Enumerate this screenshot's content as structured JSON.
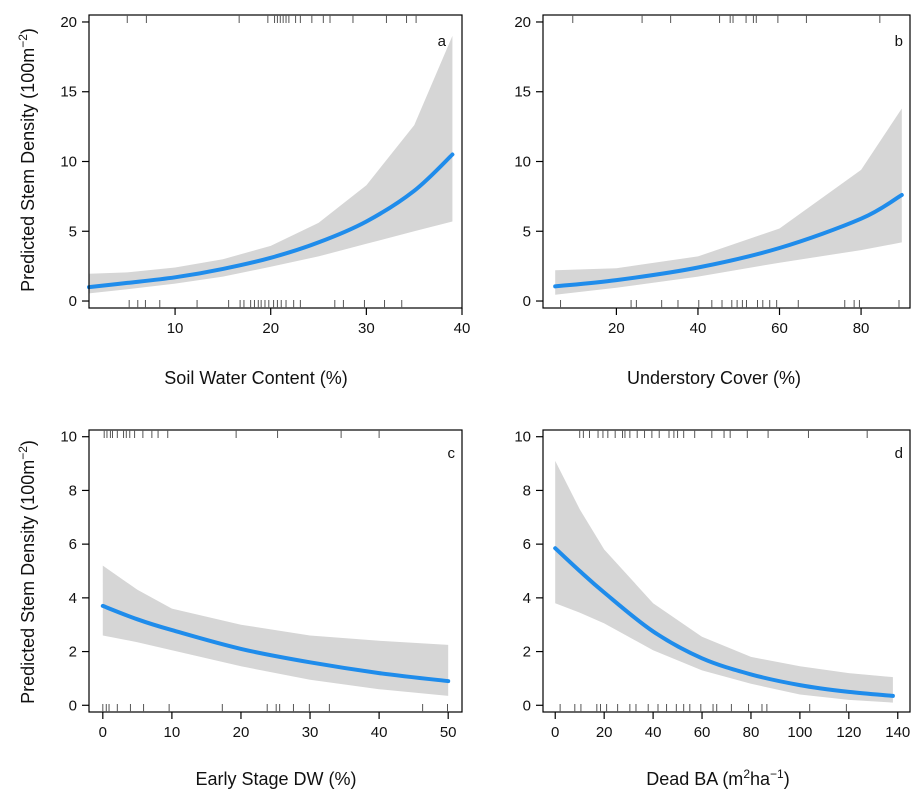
{
  "chart_data": [
    {
      "type": "line",
      "panel": "a",
      "xlabel": "Soil Water Content (%)",
      "ylabel": "Predicted Stem Density (100m",
      "ylabel_sup": "−2",
      "ylabel_tail": ")",
      "xlim": [
        1,
        40
      ],
      "ylim": [
        -0.5,
        20.5
      ],
      "x_ticks": [
        10,
        20,
        30,
        40
      ],
      "y_ticks": [
        0,
        5,
        10,
        15,
        20
      ],
      "x": [
        1,
        5,
        10,
        15,
        20,
        25,
        30,
        35,
        39
      ],
      "fit": [
        1.0,
        1.3,
        1.7,
        2.3,
        3.1,
        4.2,
        5.7,
        7.9,
        10.5
      ],
      "ci_lower": [
        0.55,
        0.85,
        1.25,
        1.75,
        2.45,
        3.2,
        4.1,
        5.0,
        5.7
      ],
      "ci_upper": [
        1.95,
        2.05,
        2.4,
        3.0,
        3.95,
        5.6,
        8.3,
        12.6,
        19.0
      ],
      "rug_bottom": [
        5.2,
        6.1,
        6.9,
        8.4,
        12.3,
        15.6,
        16.8,
        17.2,
        17.9,
        18.3,
        18.7,
        19.0,
        19.4,
        19.8,
        20.3,
        20.7,
        21.1,
        21.6,
        22.4,
        23.1,
        26.7,
        27.6,
        29.8,
        31.9,
        33.7
      ],
      "rug_top": [
        5.0,
        7.0,
        16.7,
        19.7,
        20.4,
        20.7,
        21.0,
        21.3,
        21.6,
        21.9,
        22.6,
        23.1,
        24.3,
        25.5,
        26.2,
        28.6,
        32.1,
        34.2,
        35.2
      ]
    },
    {
      "type": "line",
      "panel": "b",
      "xlabel": "Understory Cover (%)",
      "xlim": [
        2,
        92
      ],
      "ylim": [
        -0.5,
        20.5
      ],
      "x_ticks": [
        20,
        40,
        60,
        80
      ],
      "y_ticks": [
        0,
        5,
        10,
        15,
        20
      ],
      "x": [
        5,
        20,
        40,
        60,
        80,
        90
      ],
      "fit": [
        1.05,
        1.5,
        2.4,
        3.8,
        5.9,
        7.6
      ],
      "ci_lower": [
        0.45,
        0.95,
        1.75,
        2.75,
        3.65,
        4.2
      ],
      "ci_upper": [
        2.2,
        2.35,
        3.2,
        5.2,
        9.4,
        13.8
      ],
      "rug_bottom": [
        6.3,
        23.6,
        24.9,
        31.1,
        35.1,
        40.2,
        43.4,
        45.9,
        48.3,
        49.6,
        50.9,
        51.9,
        54.6,
        55.9,
        57.6,
        59.3,
        64.6,
        76.0,
        78.3,
        79.6,
        89.3
      ],
      "rug_top": [
        9.3,
        26.3,
        33.3,
        45.3,
        47.9,
        48.6,
        51.8,
        53.6,
        54.3,
        59.6,
        66.6,
        84.6
      ]
    },
    {
      "type": "line",
      "panel": "c",
      "xlabel": "Early Stage DW (%)",
      "ylabel": "Predicted Stem Density (100m",
      "ylabel_sup": "−2",
      "ylabel_tail": ")",
      "xlim": [
        -2,
        52
      ],
      "ylim": [
        -0.25,
        10.25
      ],
      "x_ticks": [
        0,
        10,
        20,
        30,
        40,
        50
      ],
      "y_ticks": [
        0,
        2,
        4,
        6,
        8,
        10
      ],
      "x": [
        0,
        5,
        10,
        20,
        30,
        40,
        50
      ],
      "fit": [
        3.7,
        3.2,
        2.8,
        2.1,
        1.6,
        1.2,
        0.9
      ],
      "ci_lower": [
        2.6,
        2.35,
        2.05,
        1.45,
        0.95,
        0.6,
        0.35
      ],
      "ci_upper": [
        5.2,
        4.3,
        3.6,
        3.0,
        2.6,
        2.4,
        2.25
      ],
      "rug_bottom": [
        0.0,
        0.5,
        0.9,
        2.1,
        4.0,
        5.9,
        9.6,
        17.3,
        23.8,
        25.1,
        25.6,
        27.6,
        29.9,
        32.8,
        46.3,
        49.9
      ],
      "rug_top": [
        0.2,
        0.6,
        1.1,
        1.4,
        2.1,
        3.0,
        3.4,
        3.9,
        4.6,
        5.8,
        7.1,
        8.0,
        9.4,
        19.3,
        25.3,
        34.5,
        40.0
      ]
    },
    {
      "type": "line",
      "panel": "d",
      "xlabel": "Dead BA (m",
      "xlabel_sup1": "2",
      "xlabel_mid": "ha",
      "xlabel_sup2": "−1",
      "xlabel_tail": ")",
      "xlim": [
        -5,
        145
      ],
      "ylim": [
        -0.25,
        10.25
      ],
      "x_ticks": [
        0,
        20,
        40,
        60,
        80,
        100,
        120,
        140
      ],
      "y_ticks": [
        0,
        2,
        4,
        6,
        8,
        10
      ],
      "x": [
        0,
        10,
        20,
        40,
        60,
        80,
        100,
        120,
        138
      ],
      "fit": [
        5.85,
        5.0,
        4.2,
        2.75,
        1.75,
        1.15,
        0.75,
        0.5,
        0.35
      ],
      "ci_lower": [
        3.8,
        3.45,
        3.05,
        2.05,
        1.3,
        0.8,
        0.4,
        0.2,
        0.1
      ],
      "ci_upper": [
        9.1,
        7.3,
        5.8,
        3.8,
        2.55,
        1.8,
        1.45,
        1.2,
        1.05
      ],
      "rug_bottom": [
        2.0,
        8.0,
        10.5,
        17.0,
        18.5,
        21.0,
        25.5,
        30.5,
        33.0,
        38.0,
        42.0,
        45.5,
        49.5,
        52.5,
        55.0,
        59.5,
        64.5,
        66.0,
        72.0,
        79.0,
        84.5,
        86.5,
        104.0,
        119.0
      ],
      "rug_top": [
        10.0,
        11.5,
        14.0,
        17.5,
        19.5,
        21.5,
        24.5,
        27.5,
        28.5,
        30.5,
        33.5,
        36.5,
        39.5,
        42.5,
        46.5,
        48.5,
        50.0,
        52.5,
        57.0,
        64.0,
        69.0,
        71.5,
        78.5,
        87.0,
        103.5,
        127.5
      ]
    }
  ],
  "colors": {
    "line": "#1f8ceb",
    "band": "#d6d6d6",
    "axis": "#000000",
    "rug": "#555555"
  }
}
